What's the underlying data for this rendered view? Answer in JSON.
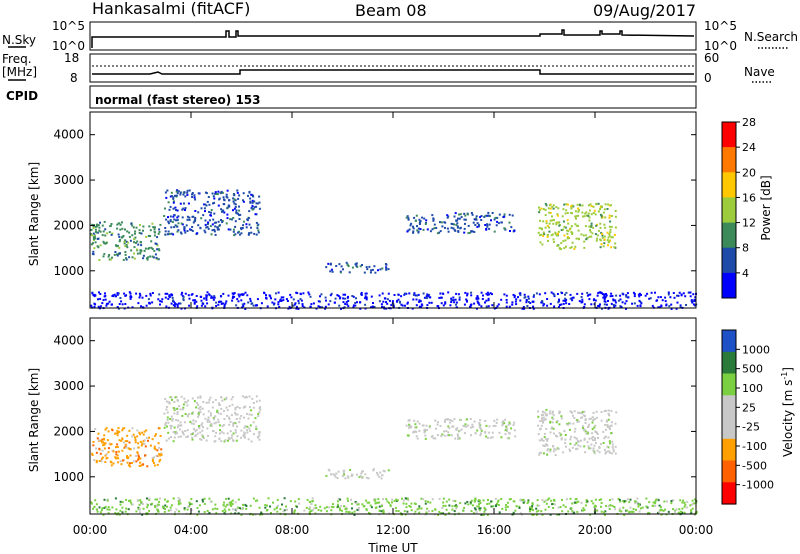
{
  "header": {
    "station": "Hankasalmi (fitACF)",
    "beam": "Beam 08",
    "date": "09/Aug/2017"
  },
  "panels": {
    "nsky": {
      "label": "N.Sky",
      "right_label": "N.Search",
      "left_ticks": [
        "10^5",
        "10^0"
      ],
      "right_ticks": [
        "10^5",
        "10^0"
      ]
    },
    "freq": {
      "label_top": "Freq.",
      "label_unit": "[MHz]",
      "left_ticks": [
        "18",
        "8"
      ],
      "right_label": "Nave",
      "right_ticks": [
        "60",
        "0"
      ]
    },
    "cpid": {
      "label": "CPID",
      "mode": "normal (fast stereo) 153"
    }
  },
  "chart_data": [
    {
      "type": "heatmap",
      "name": "power",
      "ylabel": "Slant Range [km]",
      "ylim": [
        180,
        4500
      ],
      "yticks": [
        "1000",
        "2000",
        "3000",
        "4000"
      ],
      "xlim": [
        0,
        24
      ],
      "colorbar_label": "Power [dB]",
      "colorbar_ticks": [
        "4",
        "8",
        "12",
        "16",
        "20",
        "24",
        "28"
      ],
      "colors": [
        "#0000ff",
        "#1e4aa8",
        "#3c8a5a",
        "#9ccc3c",
        "#ffc800",
        "#ff7800",
        "#ff0000"
      ],
      "regions": [
        {
          "t0": 0.0,
          "t1": 2.8,
          "r0": 1250,
          "r1": 2100,
          "level": 2
        },
        {
          "t0": 2.9,
          "t1": 6.7,
          "r0": 1800,
          "r1": 2800,
          "level": 1
        },
        {
          "t0": 9.3,
          "t1": 11.8,
          "r0": 980,
          "r1": 1200,
          "level": 1
        },
        {
          "t0": 12.5,
          "t1": 16.8,
          "r0": 1850,
          "r1": 2300,
          "level": 1
        },
        {
          "t0": 17.7,
          "t1": 20.8,
          "r0": 1500,
          "r1": 2500,
          "level": 3
        },
        {
          "t0": 0.0,
          "t1": 24.0,
          "r0": 180,
          "r1": 550,
          "level": 0
        }
      ]
    },
    {
      "type": "heatmap",
      "name": "velocity",
      "ylabel": "Slant Range [km]",
      "ylim": [
        180,
        4500
      ],
      "yticks": [
        "1000",
        "2000",
        "3000",
        "4000"
      ],
      "xlim": [
        0,
        24
      ],
      "colorbar_label": "Velocity [m s",
      "colorbar_label_sup": "-1",
      "colorbar_label_end": "]",
      "colorbar_ticks": [
        "1000",
        "500",
        "100",
        "25",
        "-25",
        "-100",
        "-500",
        "-1000"
      ],
      "colors": [
        "#1e50c8",
        "#2a7a3a",
        "#7ad040",
        "#c8c8c8",
        "#c8c8c8",
        "#ffa000",
        "#ff6000",
        "#ff0000"
      ],
      "regions": [
        {
          "t0": 0.0,
          "t1": 2.8,
          "r0": 1250,
          "r1": 2100,
          "level": 5
        },
        {
          "t0": 2.9,
          "t1": 6.7,
          "r0": 1800,
          "r1": 2800,
          "level": 3
        },
        {
          "t0": 9.3,
          "t1": 11.8,
          "r0": 980,
          "r1": 1200,
          "level": 3
        },
        {
          "t0": 12.5,
          "t1": 16.8,
          "r0": 1850,
          "r1": 2300,
          "level": 3
        },
        {
          "t0": 17.7,
          "t1": 20.8,
          "r0": 1500,
          "r1": 2500,
          "level": 3
        },
        {
          "t0": 0.0,
          "t1": 24.0,
          "r0": 180,
          "r1": 550,
          "level": 2
        }
      ]
    }
  ],
  "xaxis": {
    "label": "Time UT",
    "ticks": [
      "00:00",
      "04:00",
      "08:00",
      "12:00",
      "16:00",
      "20:00",
      "00:00"
    ]
  }
}
